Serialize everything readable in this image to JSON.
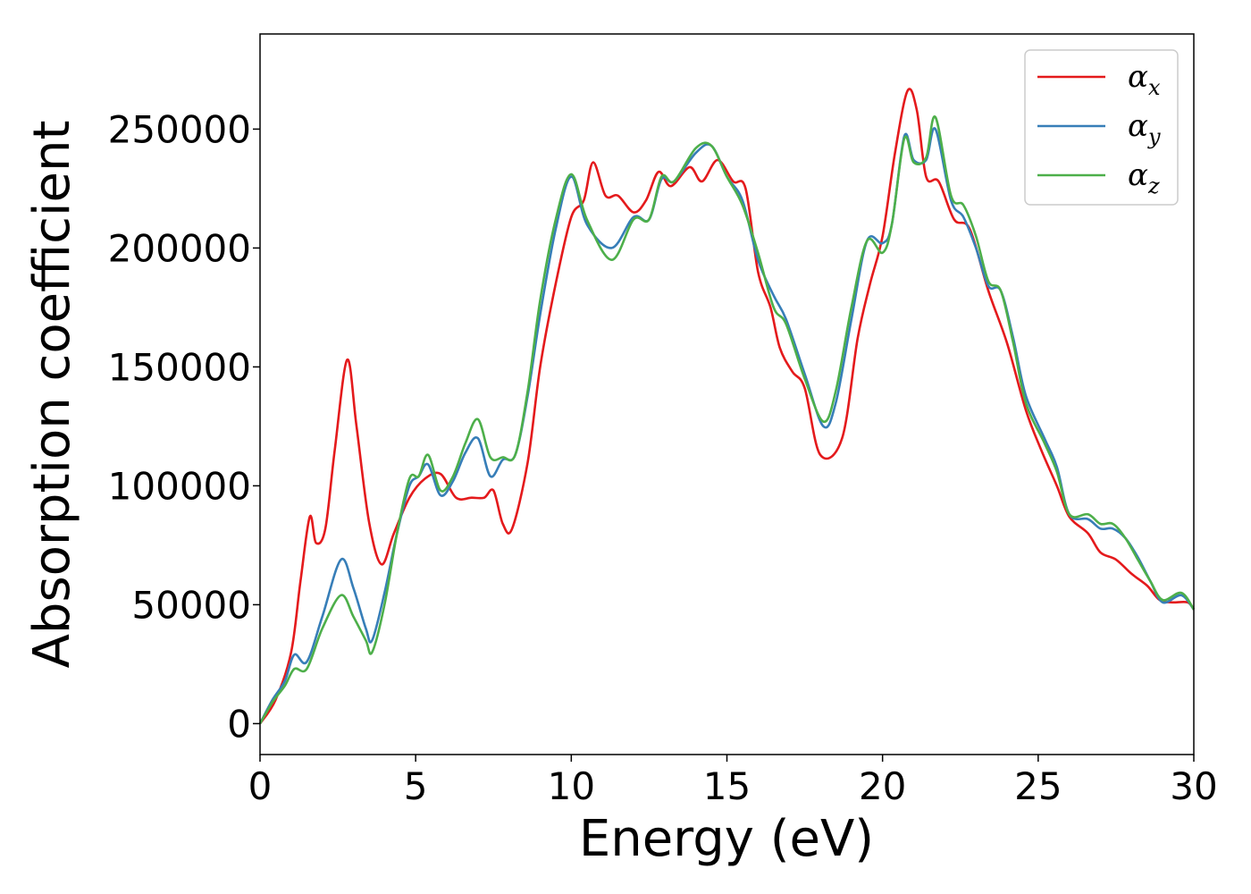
{
  "chart_data": {
    "type": "line",
    "title": "",
    "xlabel": "Energy (eV)",
    "ylabel": "Absorption coefficient",
    "xlim": [
      0,
      30
    ],
    "ylim": [
      -13000,
      290000
    ],
    "xticks": [
      0,
      5,
      10,
      15,
      20,
      25,
      30
    ],
    "yticks": [
      0,
      50000,
      100000,
      150000,
      200000,
      250000
    ],
    "xtick_labels": [
      "0",
      "5",
      "10",
      "15",
      "20",
      "25",
      "30"
    ],
    "ytick_labels": [
      "0",
      "50000",
      "100000",
      "150000",
      "200000",
      "250000"
    ],
    "grid": false,
    "legend_position": "top-right",
    "series": [
      {
        "name": "α",
        "subscript": "x",
        "color": "#e41a1c",
        "points": [
          [
            0,
            0
          ],
          [
            0.5,
            10000
          ],
          [
            1,
            30000
          ],
          [
            1.3,
            60000
          ],
          [
            1.6,
            87000
          ],
          [
            1.8,
            76000
          ],
          [
            2.1,
            82000
          ],
          [
            2.4,
            115000
          ],
          [
            2.8,
            153000
          ],
          [
            3.1,
            125000
          ],
          [
            3.5,
            85000
          ],
          [
            3.9,
            67000
          ],
          [
            4.3,
            80000
          ],
          [
            4.8,
            95000
          ],
          [
            5.3,
            103000
          ],
          [
            5.8,
            105000
          ],
          [
            6.3,
            95000
          ],
          [
            6.8,
            95000
          ],
          [
            7.2,
            95000
          ],
          [
            7.5,
            98000
          ],
          [
            7.8,
            84000
          ],
          [
            8.1,
            82000
          ],
          [
            8.6,
            110000
          ],
          [
            9,
            150000
          ],
          [
            9.5,
            185000
          ],
          [
            10,
            213000
          ],
          [
            10.4,
            220000
          ],
          [
            10.7,
            236000
          ],
          [
            11.1,
            222000
          ],
          [
            11.5,
            222000
          ],
          [
            12,
            215000
          ],
          [
            12.4,
            220000
          ],
          [
            12.8,
            232000
          ],
          [
            13.2,
            226000
          ],
          [
            13.8,
            234000
          ],
          [
            14.2,
            228000
          ],
          [
            14.7,
            237000
          ],
          [
            15.2,
            228000
          ],
          [
            15.6,
            225000
          ],
          [
            16,
            190000
          ],
          [
            16.4,
            175000
          ],
          [
            16.7,
            158000
          ],
          [
            17.1,
            148000
          ],
          [
            17.5,
            141000
          ],
          [
            18,
            113000
          ],
          [
            18.7,
            120000
          ],
          [
            19.2,
            162000
          ],
          [
            19.6,
            185000
          ],
          [
            20,
            205000
          ],
          [
            20.4,
            240000
          ],
          [
            20.8,
            266000
          ],
          [
            21.1,
            258000
          ],
          [
            21.4,
            230000
          ],
          [
            21.8,
            228000
          ],
          [
            22.3,
            212000
          ],
          [
            22.8,
            208000
          ],
          [
            23.4,
            182000
          ],
          [
            24,
            160000
          ],
          [
            24.6,
            132000
          ],
          [
            25.1,
            115000
          ],
          [
            25.6,
            100000
          ],
          [
            26,
            87000
          ],
          [
            26.6,
            80000
          ],
          [
            27,
            72000
          ],
          [
            27.5,
            69000
          ],
          [
            28,
            63000
          ],
          [
            28.5,
            58000
          ],
          [
            28.9,
            52000
          ],
          [
            29.3,
            51000
          ],
          [
            29.8,
            51000
          ],
          [
            30,
            48000
          ]
        ]
      },
      {
        "name": "α",
        "subscript": "y",
        "color": "#377eb8",
        "points": [
          [
            0,
            0
          ],
          [
            0.4,
            10000
          ],
          [
            0.8,
            18000
          ],
          [
            1.1,
            29000
          ],
          [
            1.5,
            26000
          ],
          [
            2,
            45000
          ],
          [
            2.6,
            69000
          ],
          [
            3,
            57000
          ],
          [
            3.4,
            40000
          ],
          [
            3.6,
            35000
          ],
          [
            4,
            55000
          ],
          [
            4.4,
            80000
          ],
          [
            4.8,
            100000
          ],
          [
            5.1,
            104000
          ],
          [
            5.4,
            109000
          ],
          [
            5.8,
            96000
          ],
          [
            6.2,
            102000
          ],
          [
            6.6,
            114000
          ],
          [
            7,
            120000
          ],
          [
            7.4,
            104000
          ],
          [
            7.8,
            111000
          ],
          [
            8.2,
            113000
          ],
          [
            8.6,
            138000
          ],
          [
            9,
            172000
          ],
          [
            9.5,
            208000
          ],
          [
            10,
            230000
          ],
          [
            10.5,
            210000
          ],
          [
            11.3,
            200000
          ],
          [
            12,
            213000
          ],
          [
            12.5,
            212000
          ],
          [
            12.9,
            229000
          ],
          [
            13.3,
            228000
          ],
          [
            14,
            240000
          ],
          [
            14.5,
            243000
          ],
          [
            15,
            230000
          ],
          [
            15.5,
            220000
          ],
          [
            16,
            195000
          ],
          [
            16.5,
            180000
          ],
          [
            16.9,
            170000
          ],
          [
            17.5,
            147000
          ],
          [
            18.1,
            125000
          ],
          [
            18.5,
            135000
          ],
          [
            19,
            170000
          ],
          [
            19.5,
            203000
          ],
          [
            20,
            202000
          ],
          [
            20.3,
            210000
          ],
          [
            20.7,
            247000
          ],
          [
            21,
            237000
          ],
          [
            21.4,
            237000
          ],
          [
            21.7,
            250000
          ],
          [
            22.2,
            220000
          ],
          [
            22.6,
            213000
          ],
          [
            23,
            200000
          ],
          [
            23.4,
            184000
          ],
          [
            23.8,
            182000
          ],
          [
            24.2,
            162000
          ],
          [
            24.6,
            138000
          ],
          [
            25.2,
            120000
          ],
          [
            25.6,
            108000
          ],
          [
            26,
            88000
          ],
          [
            26.6,
            86000
          ],
          [
            27,
            82000
          ],
          [
            27.4,
            82000
          ],
          [
            27.8,
            78000
          ],
          [
            28.2,
            70000
          ],
          [
            28.6,
            60000
          ],
          [
            29,
            51000
          ],
          [
            29.6,
            54000
          ],
          [
            30,
            48000
          ]
        ]
      },
      {
        "name": "α",
        "subscript": "z",
        "color": "#4daf4a",
        "points": [
          [
            0,
            0
          ],
          [
            0.4,
            9000
          ],
          [
            0.8,
            16000
          ],
          [
            1.1,
            23000
          ],
          [
            1.5,
            23000
          ],
          [
            2,
            40000
          ],
          [
            2.6,
            54000
          ],
          [
            3,
            45000
          ],
          [
            3.4,
            35000
          ],
          [
            3.6,
            30000
          ],
          [
            4,
            50000
          ],
          [
            4.4,
            80000
          ],
          [
            4.8,
            103000
          ],
          [
            5.1,
            104000
          ],
          [
            5.4,
            113000
          ],
          [
            5.8,
            98000
          ],
          [
            6.2,
            104000
          ],
          [
            6.6,
            118000
          ],
          [
            7,
            128000
          ],
          [
            7.4,
            112000
          ],
          [
            7.8,
            112000
          ],
          [
            8.2,
            113000
          ],
          [
            8.6,
            140000
          ],
          [
            9,
            178000
          ],
          [
            9.5,
            212000
          ],
          [
            10,
            231000
          ],
          [
            10.5,
            212000
          ],
          [
            11.3,
            195000
          ],
          [
            12,
            212000
          ],
          [
            12.5,
            212000
          ],
          [
            12.9,
            230000
          ],
          [
            13.3,
            228000
          ],
          [
            14,
            242000
          ],
          [
            14.5,
            243000
          ],
          [
            15,
            230000
          ],
          [
            15.5,
            218000
          ],
          [
            16,
            198000
          ],
          [
            16.5,
            175000
          ],
          [
            16.9,
            168000
          ],
          [
            17.5,
            145000
          ],
          [
            18.1,
            127000
          ],
          [
            18.5,
            140000
          ],
          [
            19,
            175000
          ],
          [
            19.5,
            203000
          ],
          [
            20,
            198000
          ],
          [
            20.3,
            210000
          ],
          [
            20.7,
            246000
          ],
          [
            21,
            236000
          ],
          [
            21.4,
            238000
          ],
          [
            21.7,
            255000
          ],
          [
            22.2,
            222000
          ],
          [
            22.6,
            218000
          ],
          [
            23,
            205000
          ],
          [
            23.4,
            186000
          ],
          [
            23.8,
            182000
          ],
          [
            24.2,
            160000
          ],
          [
            24.6,
            135000
          ],
          [
            25.2,
            118000
          ],
          [
            25.6,
            106000
          ],
          [
            26,
            88000
          ],
          [
            26.6,
            88000
          ],
          [
            27,
            84000
          ],
          [
            27.4,
            84000
          ],
          [
            27.8,
            78000
          ],
          [
            28.2,
            69000
          ],
          [
            28.6,
            60000
          ],
          [
            29,
            52000
          ],
          [
            29.6,
            55000
          ],
          [
            30,
            48000
          ]
        ]
      }
    ]
  }
}
